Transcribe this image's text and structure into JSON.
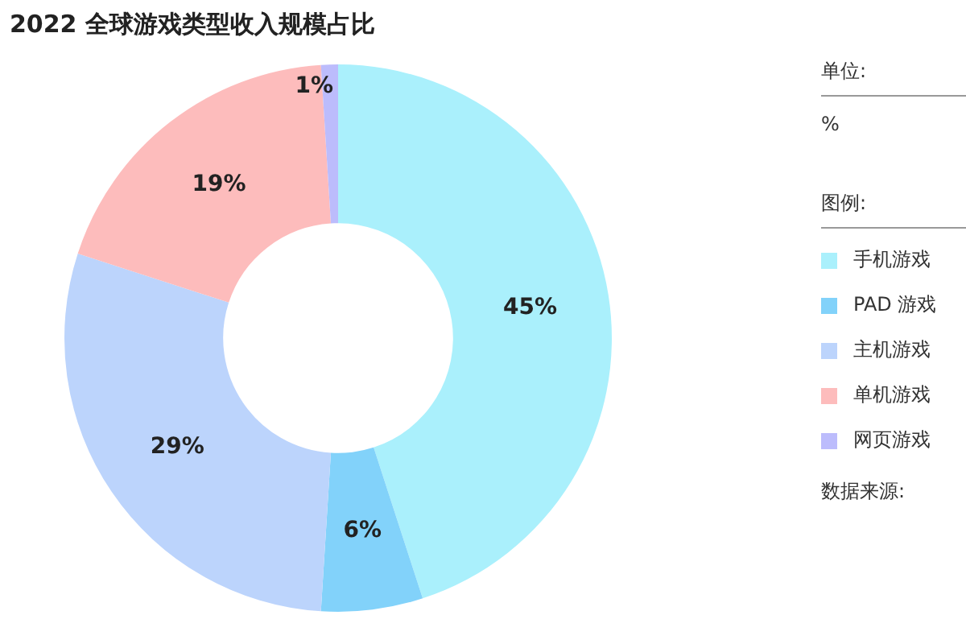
{
  "chart_data": {
    "type": "donut",
    "title": "2022 全球游戏类型收入规模占比",
    "categories": [
      "手机游戏",
      "PAD 游戏",
      "主机游戏",
      "单机游戏",
      "网页游戏"
    ],
    "values": [
      45,
      6,
      29,
      19,
      1
    ],
    "colors": [
      "#aaf0fc",
      "#82d2fa",
      "#bcd4fc",
      "#fdbcbc",
      "#bcbcfc"
    ],
    "value_labels": [
      "45%",
      "6%",
      "29%",
      "19%",
      "1%"
    ],
    "legend": "right",
    "legend_title": "图例:",
    "annotations": [
      "单位:",
      "%",
      "数据来源:"
    ]
  }
}
